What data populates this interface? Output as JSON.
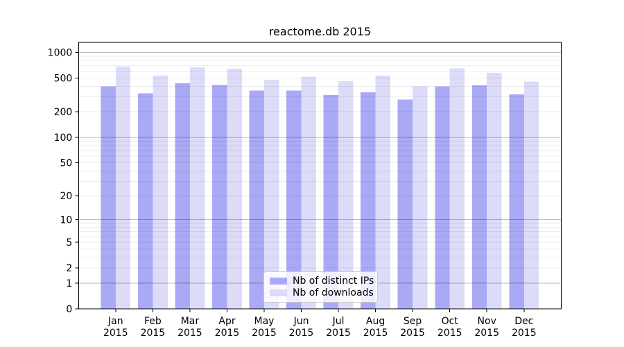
{
  "chart_data": {
    "type": "bar",
    "title": "reactome.db 2015",
    "categories": [
      "Jan",
      "Feb",
      "Mar",
      "Apr",
      "May",
      "Jun",
      "Jul",
      "Aug",
      "Sep",
      "Oct",
      "Nov",
      "Dec"
    ],
    "category_year": "2015",
    "series": [
      {
        "name": "Nb of distinct IPs",
        "color": "#a9a9f5",
        "values": [
          400,
          330,
          435,
          415,
          355,
          355,
          315,
          340,
          280,
          400,
          410,
          320
        ]
      },
      {
        "name": "Nb of downloads",
        "color": "#dcdcf9",
        "values": [
          680,
          535,
          665,
          640,
          475,
          520,
          460,
          535,
          400,
          650,
          575,
          455
        ]
      }
    ],
    "y_ticks": [
      1000,
      500,
      200,
      100,
      50,
      20,
      10,
      5,
      2,
      1,
      0
    ],
    "y_scale": "log10(1+value)",
    "ylim": [
      0,
      1000
    ],
    "grid": "horizontal",
    "legend_position": "bottom-center-inside",
    "colors": {
      "distinct_ips_bar": "#a9a9f5",
      "downloads_bar": "#dcdcf9",
      "gridline_major": "rgba(0,0,0,0.28)",
      "gridline_minor": "rgba(0,0,0,0.07)",
      "spine": "#000000",
      "text": "#000000"
    }
  }
}
